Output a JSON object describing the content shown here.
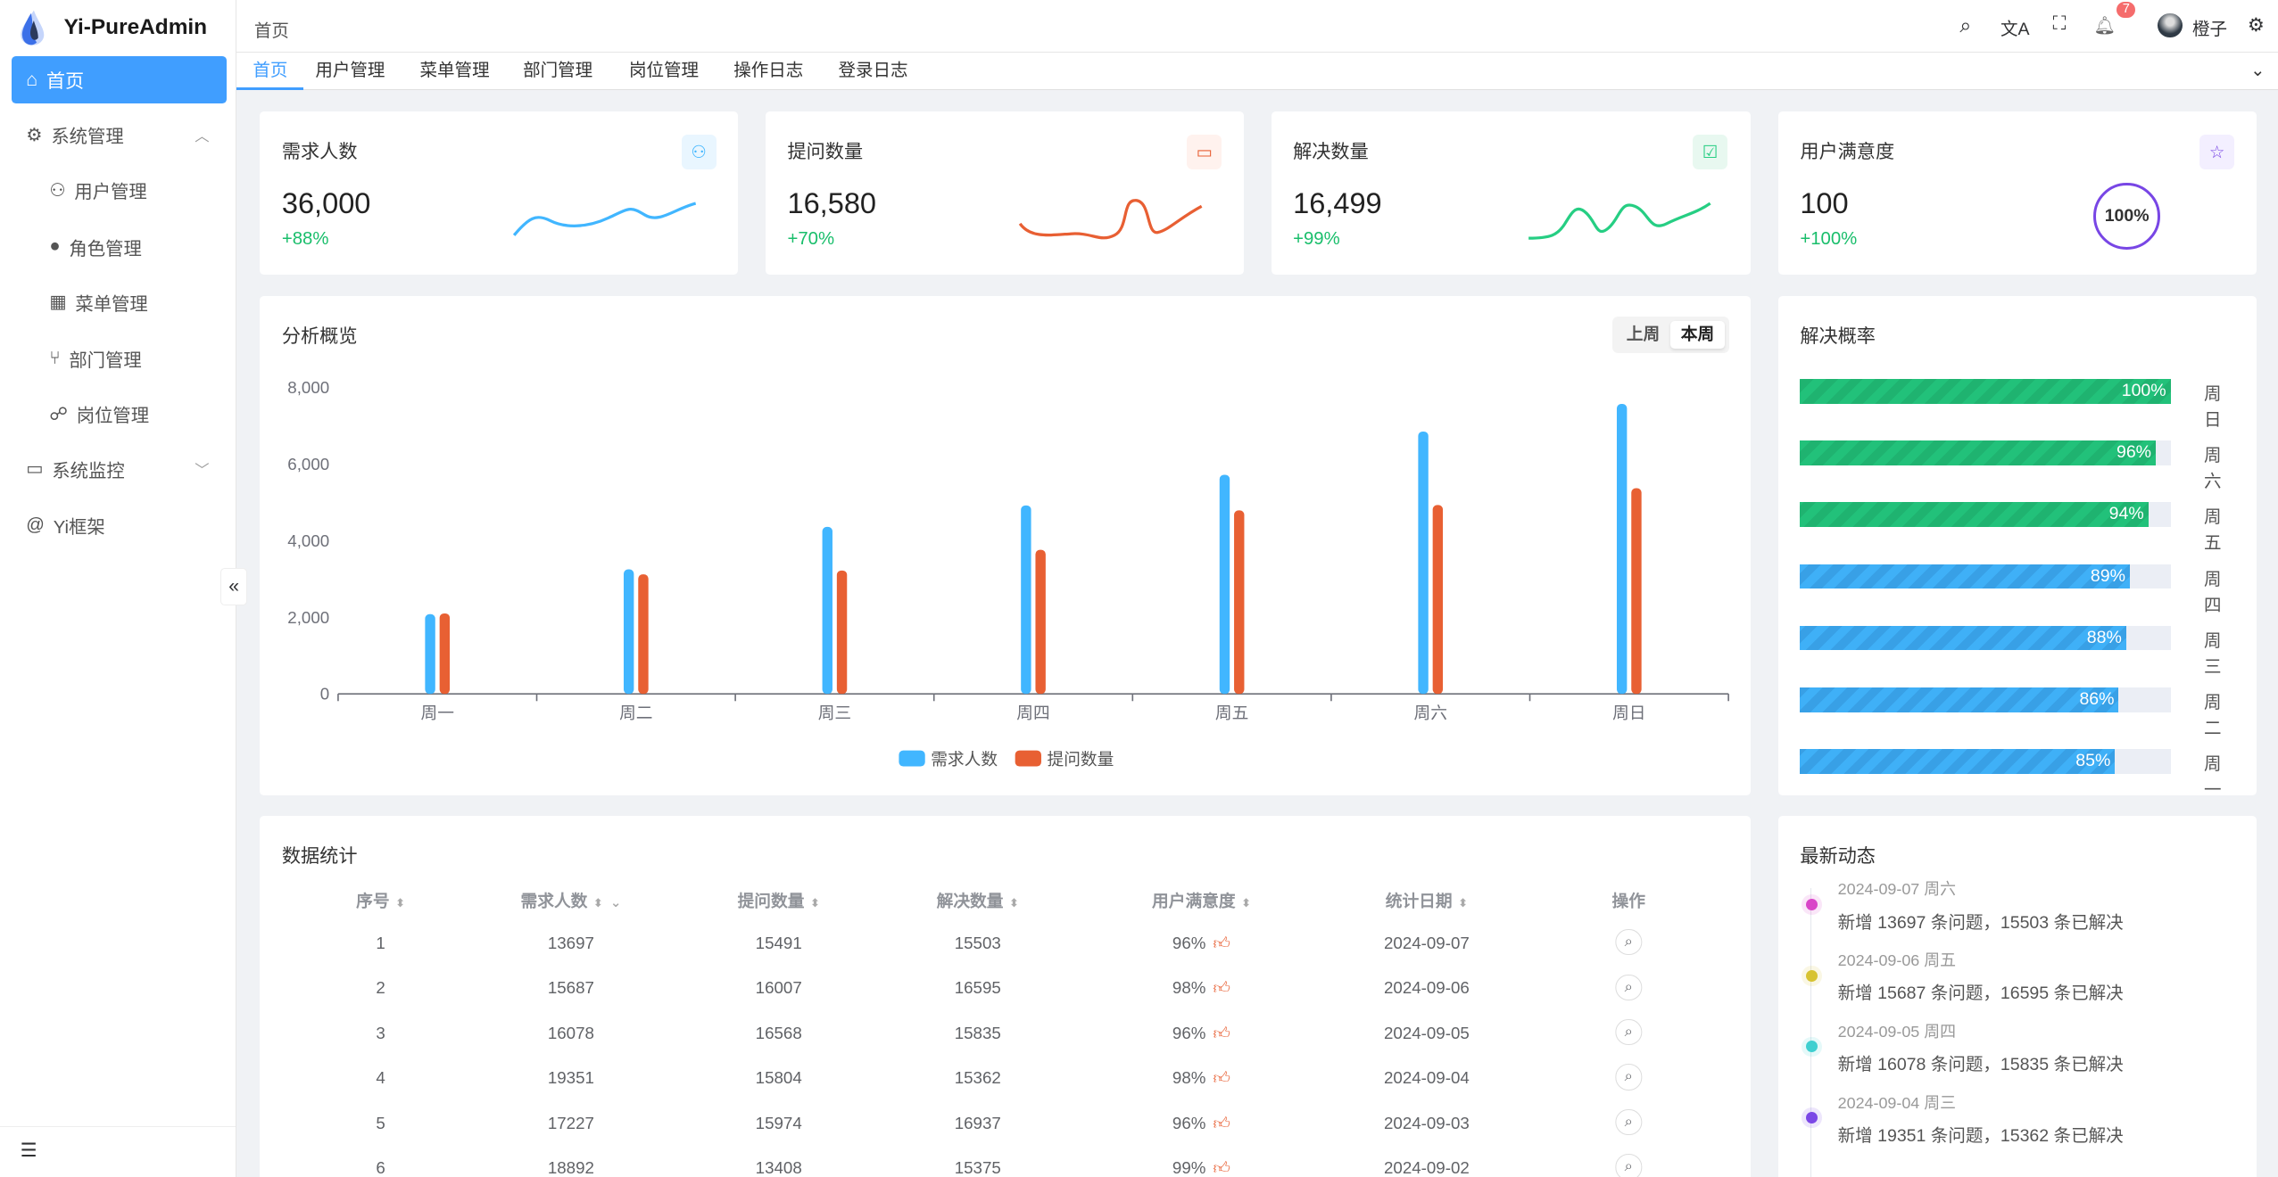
{
  "app": {
    "title": "Yi-PureAdmin"
  },
  "sidebar": {
    "items": [
      {
        "label": "首页",
        "icon": "home-icon"
      },
      {
        "label": "系统管理",
        "icon": "gear-icon"
      },
      {
        "label": "用户管理",
        "icon": "user-lock-icon"
      },
      {
        "label": "角色管理",
        "icon": "role-icon"
      },
      {
        "label": "菜单管理",
        "icon": "grid-icon"
      },
      {
        "label": "部门管理",
        "icon": "branch-icon"
      },
      {
        "label": "岗位管理",
        "icon": "network-icon"
      },
      {
        "label": "系统监控",
        "icon": "monitor-icon"
      },
      {
        "label": "Yi框架",
        "icon": "at-icon"
      }
    ]
  },
  "header": {
    "breadcrumb": "首页",
    "notification_count": "7",
    "username": "橙子"
  },
  "tabs": [
    "首页",
    "用户管理",
    "菜单管理",
    "部门管理",
    "岗位管理",
    "操作日志",
    "登录日志"
  ],
  "stats": [
    {
      "title": "需求人数",
      "value": "36,000",
      "change": "+88%",
      "color": "#41b6ff"
    },
    {
      "title": "提问数量",
      "value": "16,580",
      "change": "+70%",
      "color": "#e85f33"
    },
    {
      "title": "解决数量",
      "value": "16,499",
      "change": "+99%",
      "color": "#26ce83"
    },
    {
      "title": "用户满意度",
      "value": "100",
      "change": "+100%",
      "ring": "100%",
      "color": "#7846e5"
    }
  ],
  "overview": {
    "title": "分析概览",
    "toggle": [
      "上周",
      "本周"
    ],
    "active": "本周"
  },
  "chart_data": {
    "type": "bar",
    "categories": [
      "周一",
      "周二",
      "周三",
      "周四",
      "周五",
      "周六",
      "周日"
    ],
    "series": [
      {
        "name": "需求人数",
        "values": [
          2080,
          3250,
          4360,
          4920,
          5720,
          6850,
          7570
        ],
        "color": "#41b6ff"
      },
      {
        "name": "提问数量",
        "values": [
          2100,
          3120,
          3220,
          3760,
          4790,
          4930,
          5370
        ],
        "color": "#e86033"
      }
    ],
    "yticks": [
      "0",
      "2,000",
      "4,000",
      "6,000",
      "8,000"
    ],
    "ylim": [
      0,
      8000
    ],
    "legend": "bottom"
  },
  "resolve": {
    "title": "解决概率",
    "rows": [
      {
        "day": "周日",
        "pct": 100
      },
      {
        "day": "周六",
        "pct": 96
      },
      {
        "day": "周五",
        "pct": 94
      },
      {
        "day": "周四",
        "pct": 89
      },
      {
        "day": "周三",
        "pct": 88
      },
      {
        "day": "周二",
        "pct": 86
      },
      {
        "day": "周一",
        "pct": 85
      }
    ]
  },
  "table": {
    "title": "数据统计",
    "headers": [
      "序号",
      "需求人数",
      "提问数量",
      "解决数量",
      "用户满意度",
      "统计日期",
      "操作"
    ],
    "rows": [
      [
        "1",
        "13697",
        "15491",
        "15503",
        "96%",
        "2024-09-07"
      ],
      [
        "2",
        "15687",
        "16007",
        "16595",
        "98%",
        "2024-09-06"
      ],
      [
        "3",
        "16078",
        "16568",
        "15835",
        "96%",
        "2024-09-05"
      ],
      [
        "4",
        "19351",
        "15804",
        "15362",
        "98%",
        "2024-09-04"
      ],
      [
        "5",
        "17227",
        "15974",
        "16937",
        "96%",
        "2024-09-03"
      ],
      [
        "6",
        "18892",
        "13408",
        "15375",
        "99%",
        "2024-09-02"
      ]
    ]
  },
  "timeline": {
    "title": "最新动态",
    "items": [
      {
        "date": "2024-09-07 周六",
        "text": "新增 13697 条问题，15503 条已解决",
        "color": "#d946c8"
      },
      {
        "date": "2024-09-06 周五",
        "text": "新增 15687 条问题，16595 条已解决",
        "color": "#d7c332"
      },
      {
        "date": "2024-09-05 周四",
        "text": "新增 16078 条问题，15835 条已解决",
        "color": "#3fcfd0"
      },
      {
        "date": "2024-09-04 周三",
        "text": "新增 19351 条问题，15362 条已解决",
        "color": "#7b47e6"
      }
    ]
  }
}
